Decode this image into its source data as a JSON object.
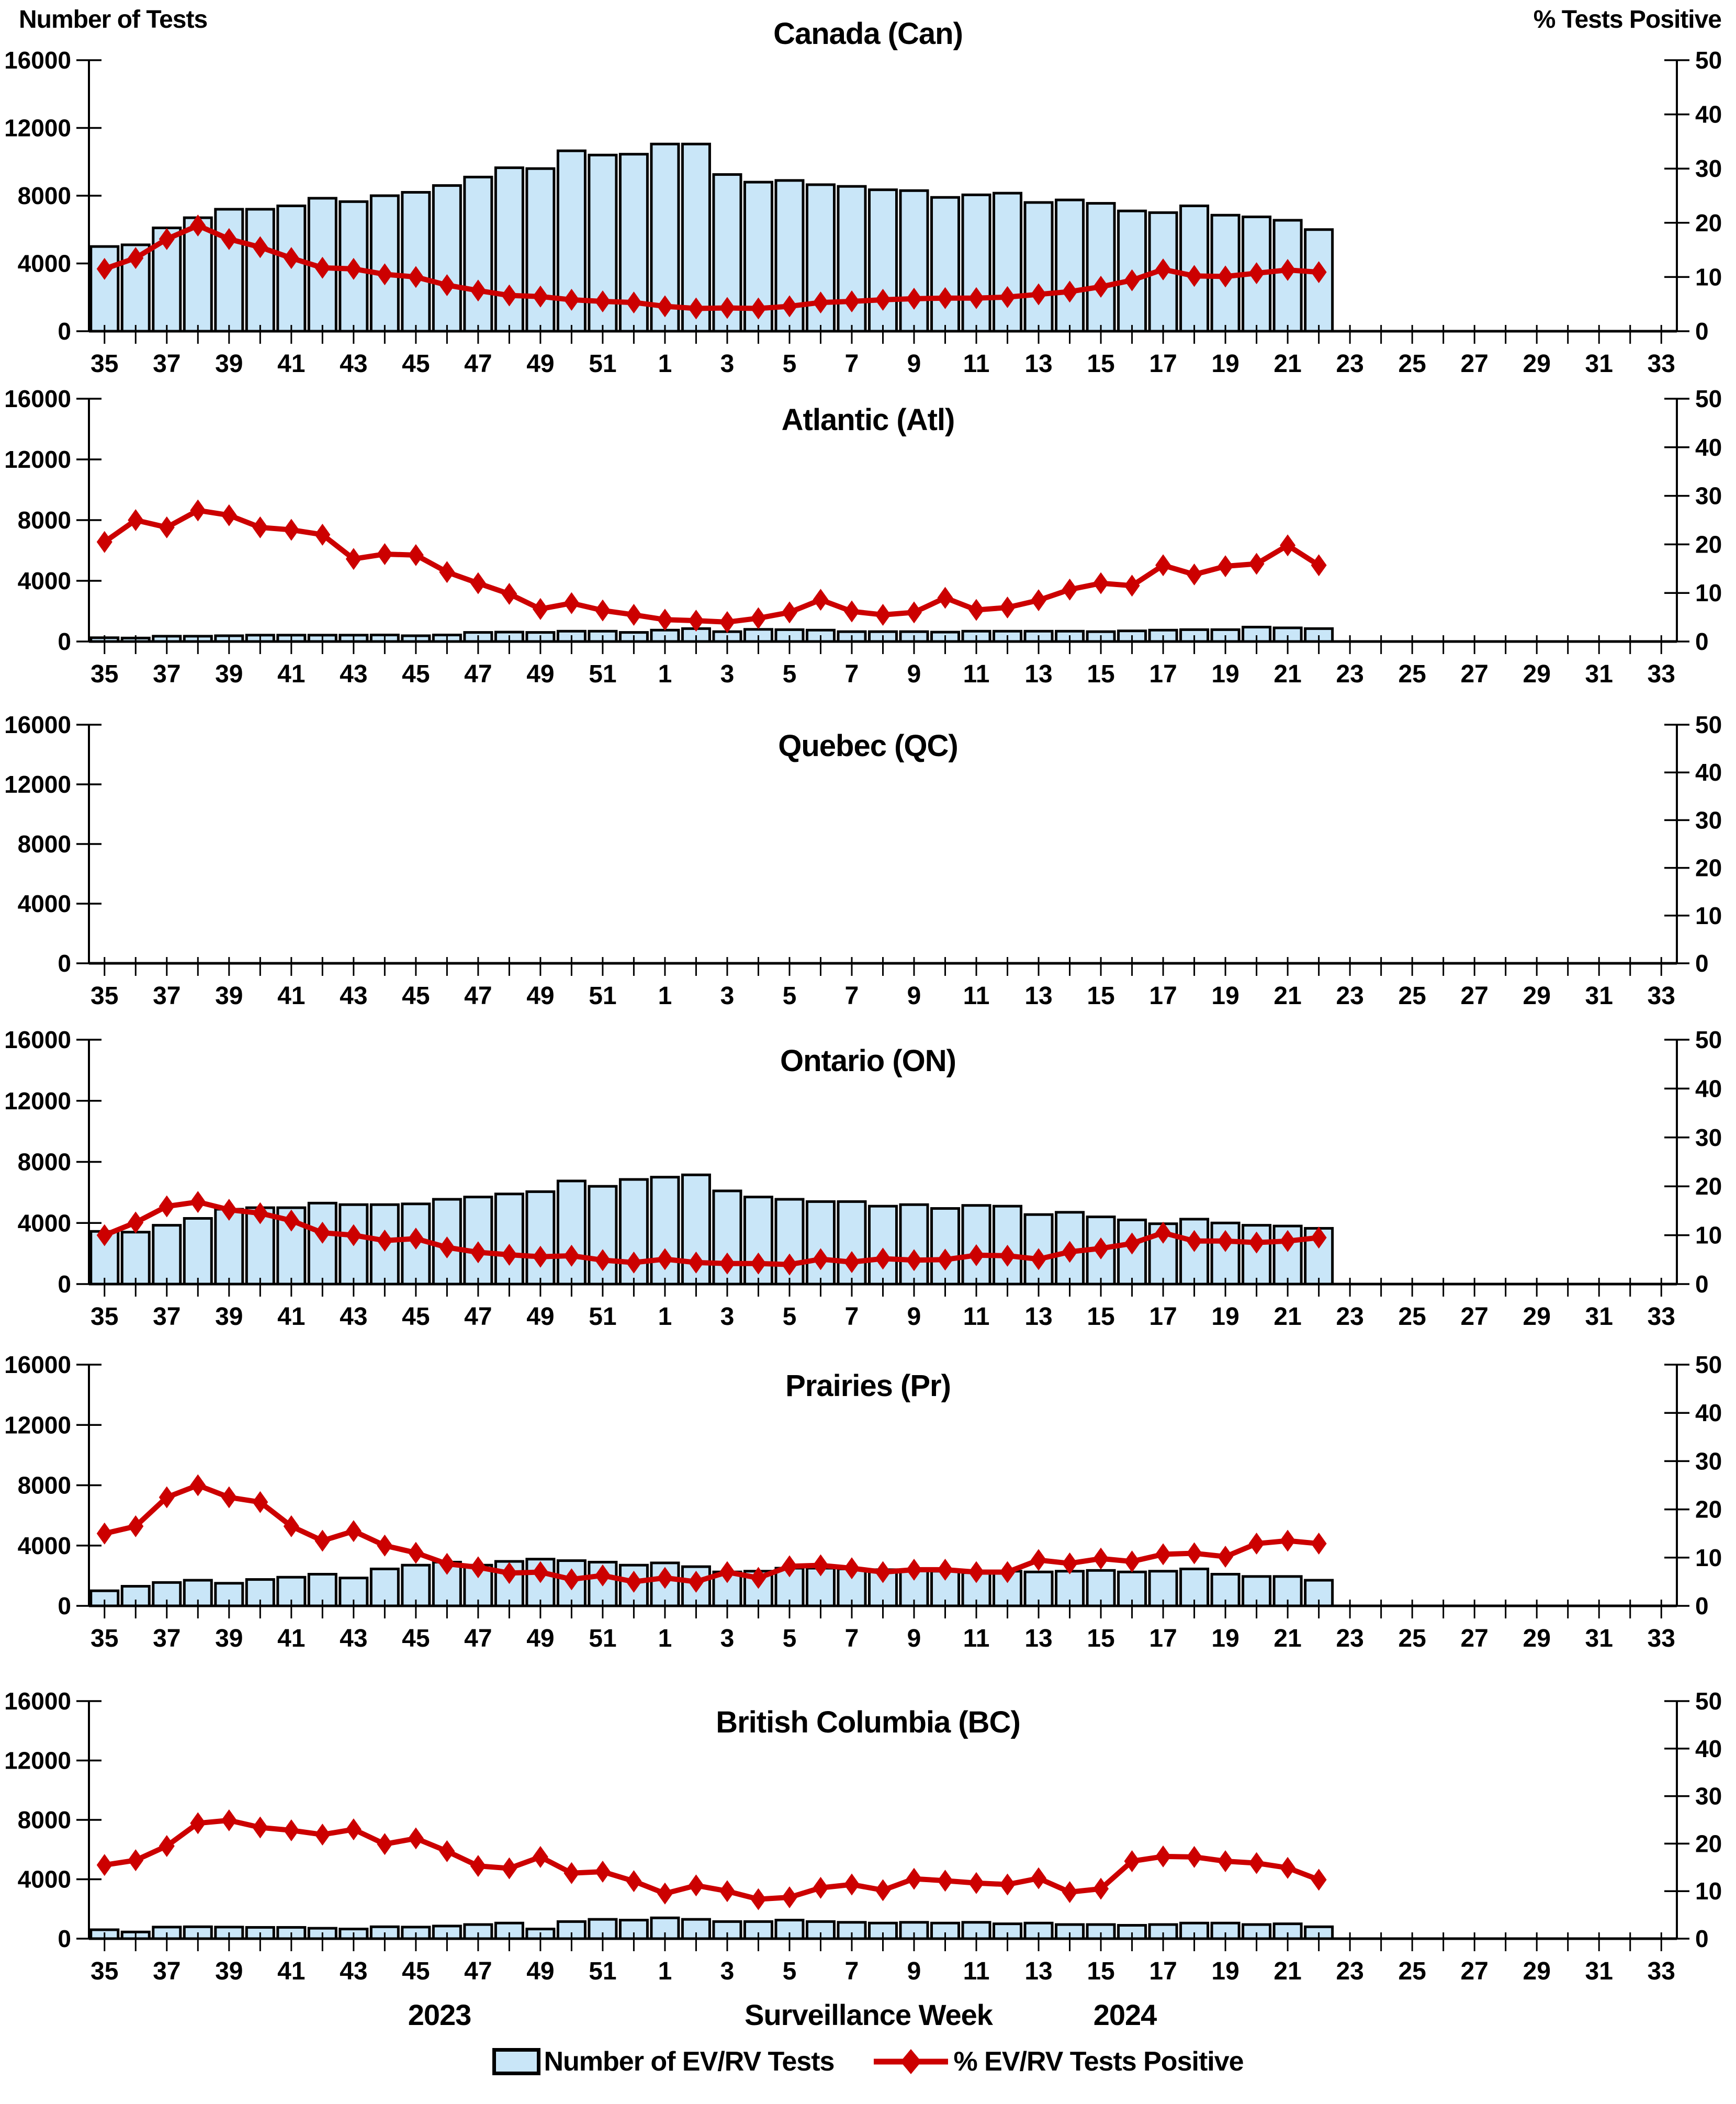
{
  "header": {
    "left_axis_title": "Number of Tests",
    "right_axis_title": "% Tests Positive"
  },
  "footer": {
    "year_left": "2023",
    "x_axis_title": "Surveillance Week",
    "year_right": "2024"
  },
  "legend": {
    "tests_label": "Number of EV/RV Tests",
    "pct_label": "% EV/RV Tests Positive"
  },
  "colors": {
    "bar_fill": "#C9E6F8",
    "bar_stroke": "#000000",
    "line_color": "#CC0000",
    "text_color": "#000000",
    "background": "#FFFFFF"
  },
  "chart_data": {
    "type": "bar+line",
    "description": "Six stacked weekly surveillance panels; bars = number of EV/RV tests (left axis), red diamond line = % EV/RV tests positive (right axis); data from week 35 of 2023 through week 22 of 2024, x-axis extends to week 33 of 2024",
    "x_label": "Surveillance Week",
    "x_weeks_all": [
      35,
      36,
      37,
      38,
      39,
      40,
      41,
      42,
      43,
      44,
      45,
      46,
      47,
      48,
      49,
      50,
      51,
      52,
      1,
      2,
      3,
      4,
      5,
      6,
      7,
      8,
      9,
      10,
      11,
      12,
      13,
      14,
      15,
      16,
      17,
      18,
      19,
      20,
      21,
      22,
      23,
      24,
      25,
      26,
      27,
      28,
      29,
      30,
      31,
      32,
      33
    ],
    "x_tick_labels": [
      35,
      37,
      39,
      41,
      43,
      45,
      47,
      49,
      51,
      1,
      3,
      5,
      7,
      9,
      11,
      13,
      15,
      17,
      19,
      21,
      23,
      25,
      27,
      29,
      31,
      33
    ],
    "x_weeks_with_data": [
      35,
      36,
      37,
      38,
      39,
      40,
      41,
      42,
      43,
      44,
      45,
      46,
      47,
      48,
      49,
      50,
      51,
      52,
      1,
      2,
      3,
      4,
      5,
      6,
      7,
      8,
      9,
      10,
      11,
      12,
      13,
      14,
      15,
      16,
      17,
      18,
      19,
      20,
      21,
      22
    ],
    "y_left": {
      "label": "Number of Tests",
      "min": 0,
      "max": 16000,
      "ticks": [
        0,
        4000,
        8000,
        12000,
        16000
      ]
    },
    "y_right": {
      "label": "% Tests Positive",
      "min": 0,
      "max": 50,
      "ticks": [
        0,
        10,
        20,
        30,
        40,
        50
      ]
    },
    "legend_position": "bottom",
    "grid": false,
    "panels": [
      {
        "title": "Canada (Can)",
        "tests": [
          5000,
          5100,
          6100,
          6700,
          7200,
          7200,
          7400,
          7850,
          7650,
          8000,
          8200,
          8600,
          9100,
          9650,
          9600,
          10650,
          10400,
          10450,
          11050,
          11050,
          9250,
          8800,
          8900,
          8650,
          8550,
          8350,
          8300,
          7900,
          8050,
          8150,
          7600,
          7750,
          7550,
          7100,
          7000,
          7400,
          6850,
          6750,
          6550,
          6000
        ],
        "pct_positive": [
          11.5,
          13.5,
          17,
          19.5,
          17,
          15.5,
          13.5,
          11.7,
          11.5,
          10.5,
          10,
          8.5,
          7.5,
          6.6,
          6.4,
          5.8,
          5.5,
          5.3,
          4.6,
          4.2,
          4.3,
          4.2,
          4.6,
          5.3,
          5.5,
          5.8,
          6,
          6.1,
          6.1,
          6.3,
          6.8,
          7.3,
          8.2,
          9.4,
          11.4,
          10.2,
          10.1,
          10.7,
          11.3,
          10.9
        ]
      },
      {
        "title": "Atlantic (Atl)",
        "tests": [
          250,
          230,
          350,
          350,
          380,
          420,
          420,
          420,
          420,
          430,
          380,
          430,
          600,
          620,
          600,
          680,
          680,
          600,
          750,
          850,
          650,
          800,
          780,
          750,
          650,
          650,
          650,
          620,
          680,
          680,
          680,
          680,
          650,
          700,
          750,
          780,
          780,
          950,
          900,
          850
        ],
        "pct_positive": [
          20.5,
          25,
          23.5,
          27,
          26,
          23.5,
          23,
          22,
          17,
          18,
          17.8,
          14.3,
          12,
          9.8,
          6.7,
          7.9,
          6.4,
          5.5,
          4.5,
          4.3,
          4,
          4.8,
          6,
          8.6,
          6.2,
          5.5,
          6,
          9,
          6.5,
          7,
          8.5,
          10.7,
          12,
          11.5,
          15.7,
          13.8,
          15.5,
          16,
          19.8,
          15.7
        ]
      },
      {
        "title": "Quebec (QC)",
        "tests": [],
        "pct_positive": []
      },
      {
        "title": "Ontario (ON)",
        "tests": [
          3450,
          3400,
          3850,
          4300,
          4900,
          5000,
          5000,
          5300,
          5200,
          5200,
          5250,
          5550,
          5700,
          5900,
          6050,
          6750,
          6400,
          6850,
          7000,
          7150,
          6100,
          5700,
          5550,
          5400,
          5400,
          5100,
          5200,
          4950,
          5150,
          5100,
          4550,
          4700,
          4400,
          4200,
          3950,
          4250,
          4000,
          3850,
          3800,
          3650
        ],
        "pct_positive": [
          10,
          12.6,
          15.9,
          16.8,
          15.2,
          14.5,
          13,
          10.5,
          10,
          8.9,
          9.3,
          7.5,
          6.5,
          6,
          5.6,
          5.8,
          4.9,
          4.4,
          5.1,
          4.4,
          4.2,
          4.2,
          4,
          5.1,
          4.5,
          5.2,
          4.9,
          5,
          5.9,
          5.8,
          5.1,
          6.6,
          7.3,
          8.3,
          10.5,
          8.8,
          8.8,
          8.5,
          8.8,
          9.5
        ]
      },
      {
        "title": "Prairies (Pr)",
        "tests": [
          1000,
          1300,
          1550,
          1700,
          1500,
          1750,
          1900,
          2100,
          1850,
          2450,
          2700,
          2900,
          2700,
          2950,
          3100,
          3000,
          2900,
          2700,
          2850,
          2600,
          2250,
          2300,
          2500,
          2500,
          2450,
          2400,
          2350,
          2300,
          2200,
          2300,
          2250,
          2300,
          2350,
          2250,
          2300,
          2450,
          2100,
          1950,
          1950,
          1700
        ],
        "pct_positive": [
          15,
          16.5,
          22.5,
          25,
          22.5,
          21.5,
          16.5,
          13.5,
          15.5,
          12.5,
          11,
          8.7,
          8,
          6.8,
          7,
          5.5,
          6.3,
          5,
          5.8,
          5,
          7,
          5.8,
          8.2,
          8.4,
          7.8,
          7,
          7.5,
          7.5,
          7,
          7,
          9.5,
          8.8,
          9.8,
          9.2,
          10.7,
          10.9,
          10.2,
          12.9,
          13.5,
          12.9
        ]
      },
      {
        "title": "British Columbia (BC)",
        "tests": [
          600,
          450,
          780,
          800,
          780,
          760,
          760,
          700,
          650,
          800,
          780,
          850,
          950,
          1050,
          650,
          1150,
          1300,
          1250,
          1400,
          1300,
          1150,
          1150,
          1250,
          1150,
          1100,
          1050,
          1100,
          1050,
          1100,
          1000,
          1050,
          950,
          950,
          900,
          950,
          1050,
          1050,
          950,
          1000,
          800
        ],
        "pct_positive": [
          15.5,
          16.5,
          19.5,
          24.3,
          24.9,
          23.4,
          22.8,
          21.9,
          23,
          19.9,
          21.1,
          18.4,
          15.3,
          14.8,
          17.2,
          13.8,
          14.1,
          12.1,
          9.5,
          11.2,
          10,
          8.3,
          8.7,
          10.7,
          11.4,
          10.2,
          12.6,
          12.2,
          11.7,
          11.4,
          12.7,
          9.8,
          10.5,
          16.3,
          17.3,
          17.2,
          16.3,
          15.9,
          14.9,
          12.4
        ]
      }
    ]
  }
}
